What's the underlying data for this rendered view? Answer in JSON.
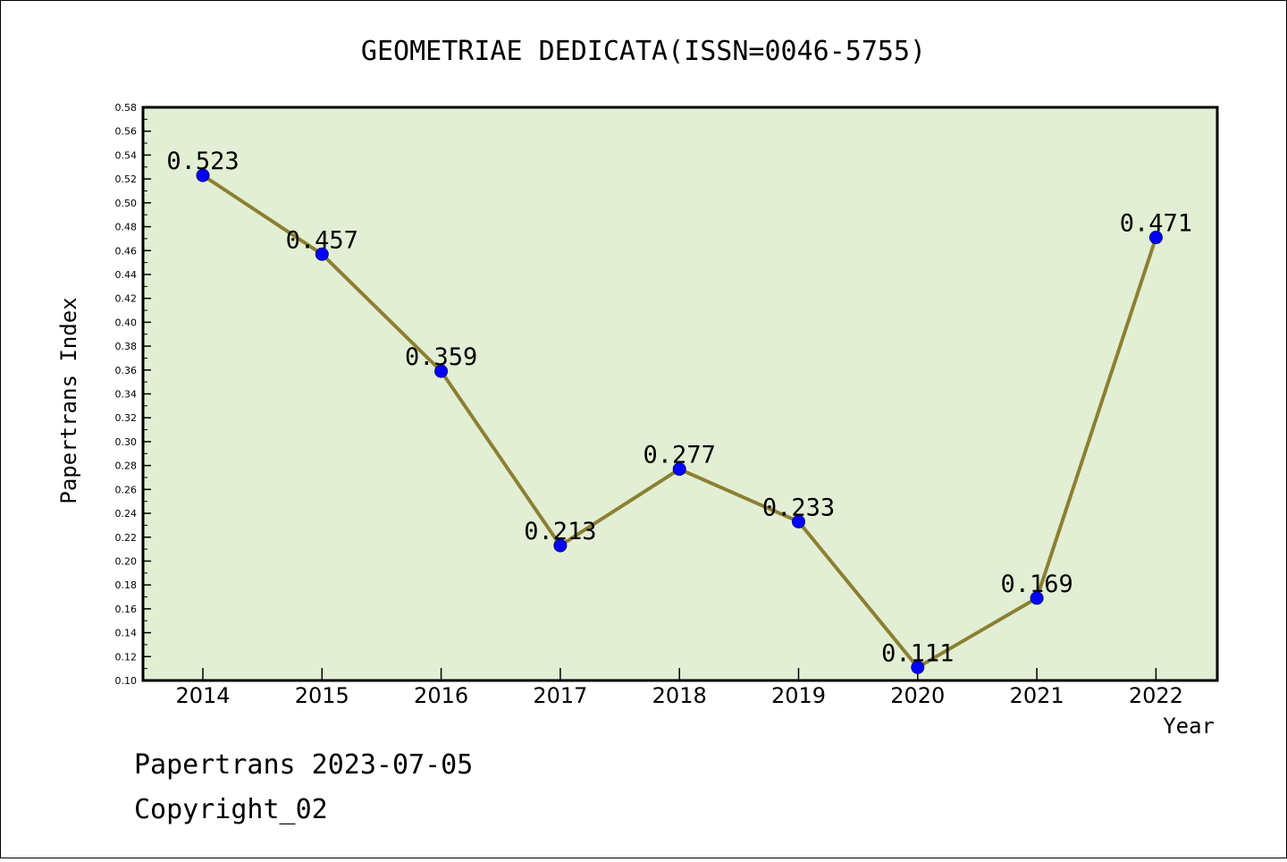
{
  "chart_data": {
    "type": "line",
    "title": "GEOMETRIAE DEDICATA(ISSN=0046-5755)",
    "xlabel": "Year",
    "ylabel": "Papertrans Index",
    "categories": [
      "2014",
      "2015",
      "2016",
      "2017",
      "2018",
      "2019",
      "2020",
      "2021",
      "2022"
    ],
    "series": [
      {
        "values": [
          0.523,
          0.457,
          0.359,
          0.213,
          0.277,
          0.233,
          0.111,
          0.169,
          0.471
        ],
        "labels": [
          "0.523",
          "0.457",
          "0.359",
          "0.213",
          "0.277",
          "0.233",
          "0.111",
          "0.169",
          "0.471"
        ]
      }
    ],
    "ylim": [
      0.1,
      0.58
    ],
    "yticks": [
      "0.10",
      "0.12",
      "0.14",
      "0.16",
      "0.18",
      "0.20",
      "0.22",
      "0.24",
      "0.26",
      "0.28",
      "0.30",
      "0.32",
      "0.34",
      "0.36",
      "0.38",
      "0.40",
      "0.42",
      "0.44",
      "0.46",
      "0.48",
      "0.50",
      "0.52",
      "0.54",
      "0.56",
      "0.58"
    ],
    "grid": false,
    "colors": {
      "plot_background": "#e2efd4",
      "line": "#8b8032",
      "marker": "#0000ff"
    }
  },
  "footer": {
    "line1": "Papertrans 2023-07-05",
    "line2": "Copyright_02"
  }
}
